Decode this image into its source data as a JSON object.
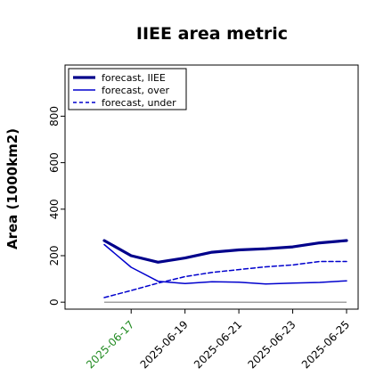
{
  "chart_data": {
    "type": "line",
    "title": "IIEE area metric",
    "xlabel": "",
    "ylabel": "Area (1000km2)",
    "x": [
      "2025-06-16",
      "2025-06-17",
      "2025-06-18",
      "2025-06-19",
      "2025-06-20",
      "2025-06-21",
      "2025-06-22",
      "2025-06-23",
      "2025-06-24",
      "2025-06-25"
    ],
    "xticks": [
      "2025-06-17",
      "2025-06-19",
      "2025-06-21",
      "2025-06-23",
      "2025-06-25"
    ],
    "xtick_colors": [
      "#228b22",
      "#000000",
      "#000000",
      "#000000",
      "#000000"
    ],
    "ylim": [
      -30,
      1020
    ],
    "yticks": [
      0,
      200,
      400,
      600,
      800
    ],
    "series": [
      {
        "name": "forecast, IIEE",
        "color": "#00008b",
        "style": "solid",
        "width": 3.2,
        "values": [
          265,
          200,
          172,
          190,
          215,
          225,
          230,
          238,
          255,
          265
        ]
      },
      {
        "name": "forecast, over",
        "color": "#0000cd",
        "style": "solid",
        "width": 1.5,
        "values": [
          248,
          150,
          90,
          80,
          88,
          86,
          78,
          82,
          85,
          92
        ]
      },
      {
        "name": "forecast, under",
        "color": "#0000cd",
        "style": "dashed",
        "width": 1.5,
        "values": [
          20,
          50,
          82,
          110,
          128,
          140,
          152,
          160,
          175,
          175
        ]
      }
    ],
    "baseline": {
      "value": 0,
      "color": "#808080"
    },
    "legend_placement": "top-left",
    "grid": false
  }
}
